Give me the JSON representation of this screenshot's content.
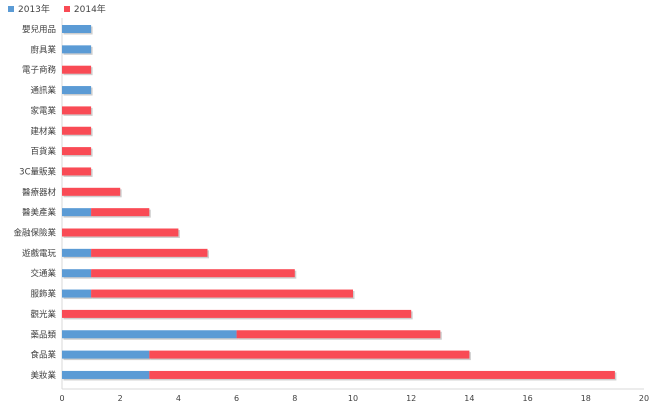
{
  "chart_data": {
    "type": "bar",
    "orientation": "horizontal",
    "stacked": true,
    "categories": [
      "嬰兒用品",
      "廚具業",
      "電子商務",
      "通訊業",
      "家電業",
      "建材業",
      "百貨業",
      "3C量販業",
      "醫療器材",
      "醫美產業",
      "金融保險業",
      "遊戲電玩",
      "交通業",
      "服飾業",
      "觀光業",
      "藥品類",
      "食品業",
      "美妝業"
    ],
    "series": [
      {
        "name": "2013年",
        "color": "#5B9BD5",
        "values": [
          1,
          1,
          0,
          1,
          0,
          0,
          0,
          0,
          0,
          1,
          0,
          1,
          1,
          1,
          0,
          6,
          3,
          3
        ]
      },
      {
        "name": "2014年",
        "color": "#F94B55",
        "values": [
          0,
          0,
          1,
          0,
          1,
          1,
          1,
          1,
          2,
          2,
          4,
          4,
          7,
          9,
          12,
          7,
          11,
          16
        ]
      }
    ],
    "x_ticks": [
      "0",
      "2",
      "4",
      "6",
      "8",
      "10",
      "12",
      "14",
      "16",
      "18",
      "20"
    ],
    "xlim": [
      0,
      20
    ],
    "legend_position": "top-left",
    "grid": false
  }
}
